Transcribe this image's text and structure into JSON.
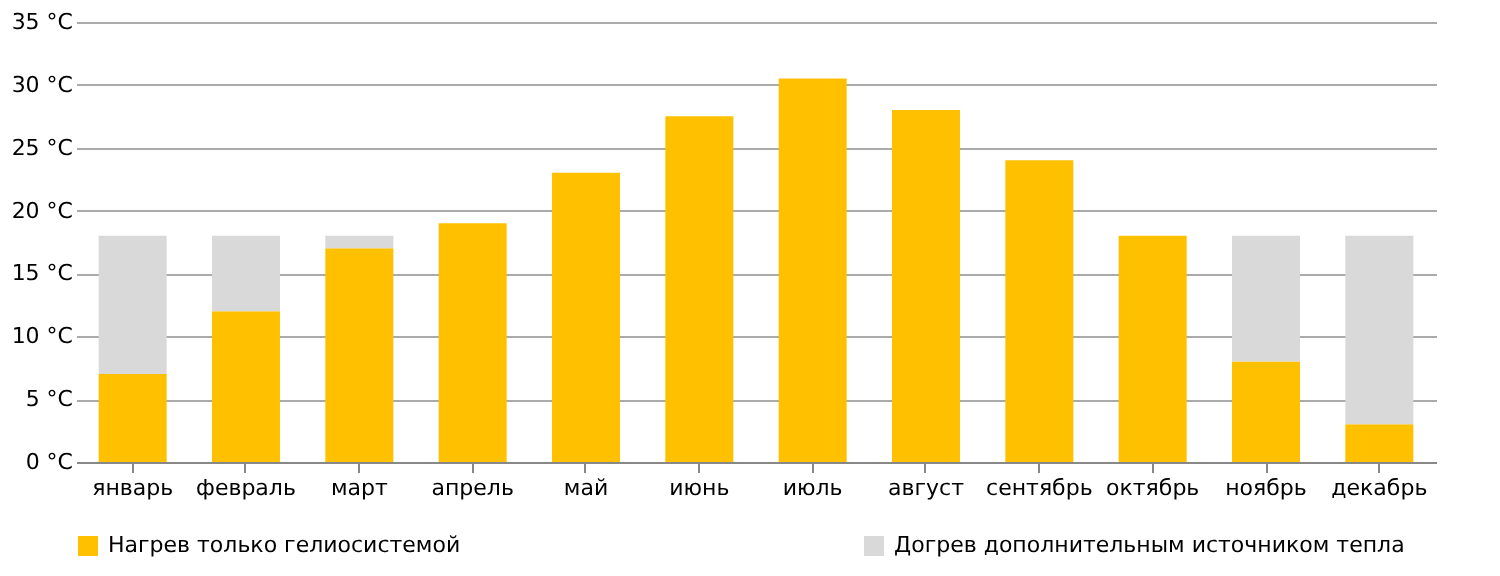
{
  "chart_data": {
    "type": "bar",
    "stacked": true,
    "categories": [
      "январь",
      "февраль",
      "март",
      "апрель",
      "май",
      "июнь",
      "июль",
      "август",
      "сентябрь",
      "октябрь",
      "ноябрь",
      "декабрь"
    ],
    "series": [
      {
        "name": "Нагрев только гелиосистемой",
        "color": "#ffc000",
        "values": [
          7,
          12,
          17,
          19,
          23,
          27.5,
          30.5,
          28,
          24,
          18,
          8,
          3
        ]
      },
      {
        "name": "Догрев дополнительным  источником тепла",
        "color": "#d9d9d9",
        "values": [
          11,
          6,
          1,
          0,
          0,
          0,
          0,
          0,
          0,
          0,
          10,
          15
        ]
      }
    ],
    "ylim": [
      0,
      35
    ],
    "yticks": [
      {
        "value": 0,
        "label": "0 °C"
      },
      {
        "value": 5,
        "label": "5 °C"
      },
      {
        "value": 10,
        "label": "10 °C"
      },
      {
        "value": 15,
        "label": "15 °C"
      },
      {
        "value": 20,
        "label": "20 °C"
      },
      {
        "value": 25,
        "label": "25 °C"
      },
      {
        "value": 30,
        "label": "30 °C"
      },
      {
        "value": 35,
        "label": "35 °C"
      }
    ],
    "grid": "y",
    "legend": "bottom"
  }
}
